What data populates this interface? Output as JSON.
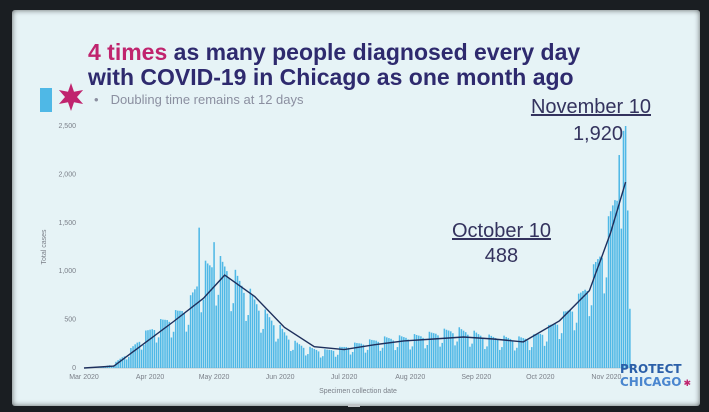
{
  "title": {
    "emph": "4 times",
    "rest_line1": " as many people diagnosed every day",
    "line2": "with COVID-19 in Chicago as one month ago"
  },
  "bullet": "Doubling time remains at 12 days",
  "annotations": {
    "november": {
      "label": "November 10",
      "value": "1,920"
    },
    "october": {
      "label": "October 10",
      "value": "488"
    }
  },
  "logo": {
    "line1": "PROTECT",
    "line2": "CHICAGO"
  },
  "colors": {
    "bar": "#4fb8e6",
    "line": "#1e2f5c",
    "title_emph": "#c0246e",
    "title": "#2e2a6e",
    "star": "#c0246e",
    "background": "#e6f3f6"
  },
  "icons": {
    "star": "six-pointed-star-icon"
  },
  "chart_data": {
    "type": "bar",
    "xlabel": "Specimen collection date",
    "ylabel": "Total cases",
    "ylim": [
      0,
      2500
    ],
    "yticks": [
      0,
      500,
      1000,
      1500,
      2000,
      2500
    ],
    "ytick_labels": [
      "0",
      "500",
      "1,000",
      "1,500",
      "2,000",
      "2,500"
    ],
    "xticks": [
      {
        "label": "Mar 2020",
        "date": "2020-03-01"
      },
      {
        "label": "Apr 2020",
        "date": "2020-04-01"
      },
      {
        "label": "May 2020",
        "date": "2020-05-01"
      },
      {
        "label": "Jun 2020",
        "date": "2020-06-01"
      },
      {
        "label": "Jul 2020",
        "date": "2020-07-01"
      },
      {
        "label": "Aug 2020",
        "date": "2020-08-01"
      },
      {
        "label": "Sep 2020",
        "date": "2020-09-01"
      },
      {
        "label": "Oct 2020",
        "date": "2020-10-01"
      },
      {
        "label": "Nov 2020",
        "date": "2020-11-01"
      }
    ],
    "x_range": [
      "2020-03-01",
      "2020-11-13"
    ],
    "series": [
      {
        "kind": "bars",
        "weekly_points": [
          {
            "date": "2020-03-01",
            "value": 0
          },
          {
            "date": "2020-03-08",
            "value": 5
          },
          {
            "date": "2020-03-15",
            "value": 40
          },
          {
            "date": "2020-03-22",
            "value": 160
          },
          {
            "date": "2020-03-29",
            "value": 330
          },
          {
            "date": "2020-04-05",
            "value": 440
          },
          {
            "date": "2020-04-12",
            "value": 520
          },
          {
            "date": "2020-04-19",
            "value": 620
          },
          {
            "date": "2020-04-26",
            "value": 980
          },
          {
            "date": "2020-05-03",
            "value": 1050
          },
          {
            "date": "2020-05-10",
            "value": 930
          },
          {
            "date": "2020-05-17",
            "value": 760
          },
          {
            "date": "2020-05-24",
            "value": 560
          },
          {
            "date": "2020-05-31",
            "value": 420
          },
          {
            "date": "2020-06-07",
            "value": 260
          },
          {
            "date": "2020-06-14",
            "value": 200
          },
          {
            "date": "2020-06-21",
            "value": 170
          },
          {
            "date": "2020-06-28",
            "value": 190
          },
          {
            "date": "2020-07-05",
            "value": 230
          },
          {
            "date": "2020-07-12",
            "value": 260
          },
          {
            "date": "2020-07-19",
            "value": 290
          },
          {
            "date": "2020-07-26",
            "value": 300
          },
          {
            "date": "2020-08-02",
            "value": 310
          },
          {
            "date": "2020-08-09",
            "value": 330
          },
          {
            "date": "2020-08-16",
            "value": 360
          },
          {
            "date": "2020-08-23",
            "value": 380
          },
          {
            "date": "2020-08-30",
            "value": 350
          },
          {
            "date": "2020-09-06",
            "value": 310
          },
          {
            "date": "2020-09-13",
            "value": 300
          },
          {
            "date": "2020-09-20",
            "value": 290
          },
          {
            "date": "2020-09-27",
            "value": 300
          },
          {
            "date": "2020-10-04",
            "value": 380
          },
          {
            "date": "2020-10-11",
            "value": 500
          },
          {
            "date": "2020-10-18",
            "value": 650
          },
          {
            "date": "2020-10-25",
            "value": 900
          },
          {
            "date": "2020-11-01",
            "value": 1300
          },
          {
            "date": "2020-11-08",
            "value": 2000
          },
          {
            "date": "2020-11-10",
            "value": 2500
          },
          {
            "date": "2020-11-12",
            "value": 600
          }
        ],
        "spikes": [
          {
            "date": "2020-04-24",
            "value": 1450
          },
          {
            "date": "2020-05-01",
            "value": 1300
          },
          {
            "date": "2020-11-07",
            "value": 2200
          },
          {
            "date": "2020-11-09",
            "value": 2450
          }
        ]
      },
      {
        "kind": "line",
        "points": [
          {
            "date": "2020-03-01",
            "value": 0
          },
          {
            "date": "2020-03-15",
            "value": 20
          },
          {
            "date": "2020-03-29",
            "value": 250
          },
          {
            "date": "2020-04-12",
            "value": 480
          },
          {
            "date": "2020-04-26",
            "value": 720
          },
          {
            "date": "2020-05-06",
            "value": 960
          },
          {
            "date": "2020-05-20",
            "value": 740
          },
          {
            "date": "2020-06-03",
            "value": 420
          },
          {
            "date": "2020-06-17",
            "value": 220
          },
          {
            "date": "2020-07-01",
            "value": 190
          },
          {
            "date": "2020-07-15",
            "value": 240
          },
          {
            "date": "2020-07-29",
            "value": 280
          },
          {
            "date": "2020-08-12",
            "value": 300
          },
          {
            "date": "2020-08-26",
            "value": 320
          },
          {
            "date": "2020-09-09",
            "value": 300
          },
          {
            "date": "2020-09-23",
            "value": 270
          },
          {
            "date": "2020-10-10",
            "value": 488
          },
          {
            "date": "2020-10-24",
            "value": 800
          },
          {
            "date": "2020-11-03",
            "value": 1400
          },
          {
            "date": "2020-11-10",
            "value": 1920
          }
        ]
      }
    ]
  }
}
